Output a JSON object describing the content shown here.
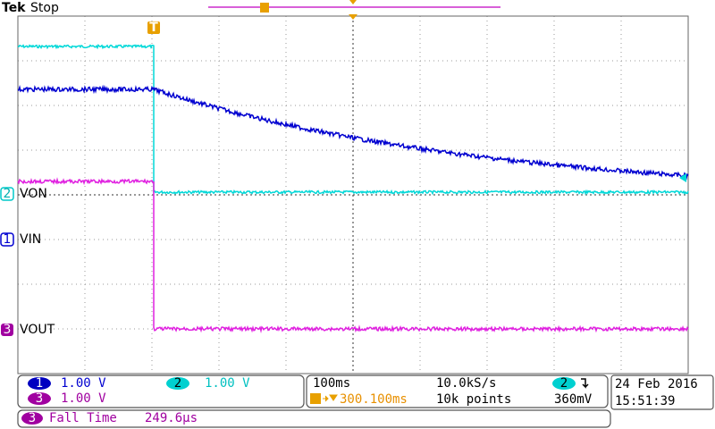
{
  "header": {
    "brand": "Tek",
    "status": "Stop"
  },
  "trigger_marker": "T",
  "channels": [
    {
      "number": "2",
      "label": "VON"
    },
    {
      "number": "1",
      "label": "VIN"
    },
    {
      "number": "3",
      "label": "VOUT"
    }
  ],
  "settings": [
    {
      "number": "1",
      "scale": "1.00 V"
    },
    {
      "number": "2",
      "scale": "1.00 V"
    },
    {
      "number": "3",
      "scale": "1.00 V"
    }
  ],
  "timebase": {
    "scale": "100ms",
    "sample_rate": "10.0kS/s",
    "trigger_source": "2",
    "trigger_level": "360mV",
    "trigger_position": "300.100ms",
    "record_length": "10k points"
  },
  "datetime": {
    "date": "24 Feb 2016",
    "time": "15:51:39"
  },
  "measurement": {
    "channel": "3",
    "name": "Fall Time",
    "value": "249.6µs"
  }
}
